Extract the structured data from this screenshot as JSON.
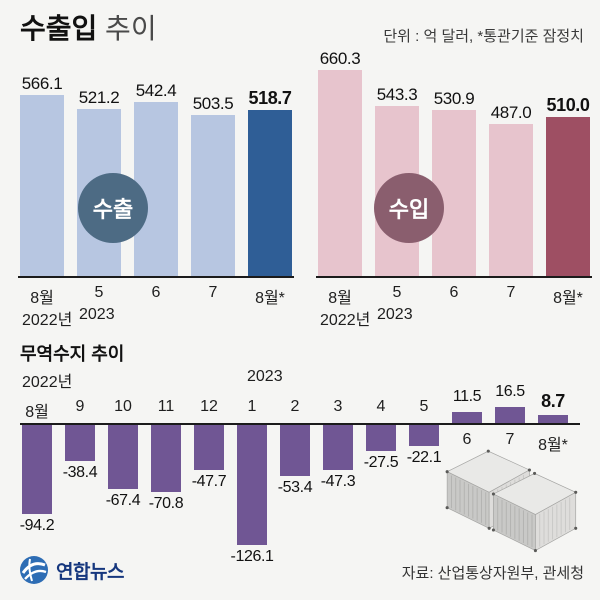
{
  "header": {
    "title_bold": "수출입",
    "title_light": " 추이",
    "unit_note": "단위 : 억 달러, *통관기준 잠정치"
  },
  "styles": {
    "background": "#f5f5f3",
    "axis_color": "#1b1b1b",
    "export_bar": "#b7c6e1",
    "export_highlight": "#2f5e96",
    "export_badge_bg": "#4d6b84",
    "import_bar": "#e7c4cd",
    "import_highlight": "#9e4f63",
    "import_badge_bg": "#8a5e6e",
    "balance_bar": "#705694",
    "logo_blue": "#2e6db4",
    "logo_navy": "#16377e"
  },
  "chart_data": [
    {
      "id": "export",
      "type": "bar",
      "title": "수출",
      "unit": "억 달러",
      "categories": [
        "8월",
        "5",
        "6",
        "7",
        "8월*"
      ],
      "category_years": {
        "0": "2022년",
        "1": "2023"
      },
      "values": [
        566.1,
        521.2,
        542.4,
        503.5,
        518.7
      ],
      "highlight_index": 4
    },
    {
      "id": "import",
      "type": "bar",
      "title": "수입",
      "unit": "억 달러",
      "categories": [
        "8월",
        "5",
        "6",
        "7",
        "8월*"
      ],
      "category_years": {
        "0": "2022년",
        "1": "2023"
      },
      "values": [
        660.3,
        543.3,
        530.9,
        487.0,
        510.0
      ],
      "highlight_index": 4
    },
    {
      "id": "balance",
      "type": "bar",
      "title": "무역수지 추이",
      "unit": "억 달러",
      "categories": [
        "8월",
        "9",
        "10",
        "11",
        "12",
        "1",
        "2",
        "3",
        "4",
        "5",
        "6",
        "7",
        "8월*"
      ],
      "category_years": {
        "0": "2022년",
        "5": "2023"
      },
      "values": [
        -94.2,
        -38.4,
        -67.4,
        -70.8,
        -47.7,
        -126.1,
        -53.4,
        -47.3,
        -27.5,
        -22.1,
        11.5,
        16.5,
        8.7
      ],
      "highlight_index": 12
    }
  ],
  "footer": {
    "logo_text": "연합뉴스",
    "source_note": "자료: 산업통상자원부, 관세청"
  }
}
